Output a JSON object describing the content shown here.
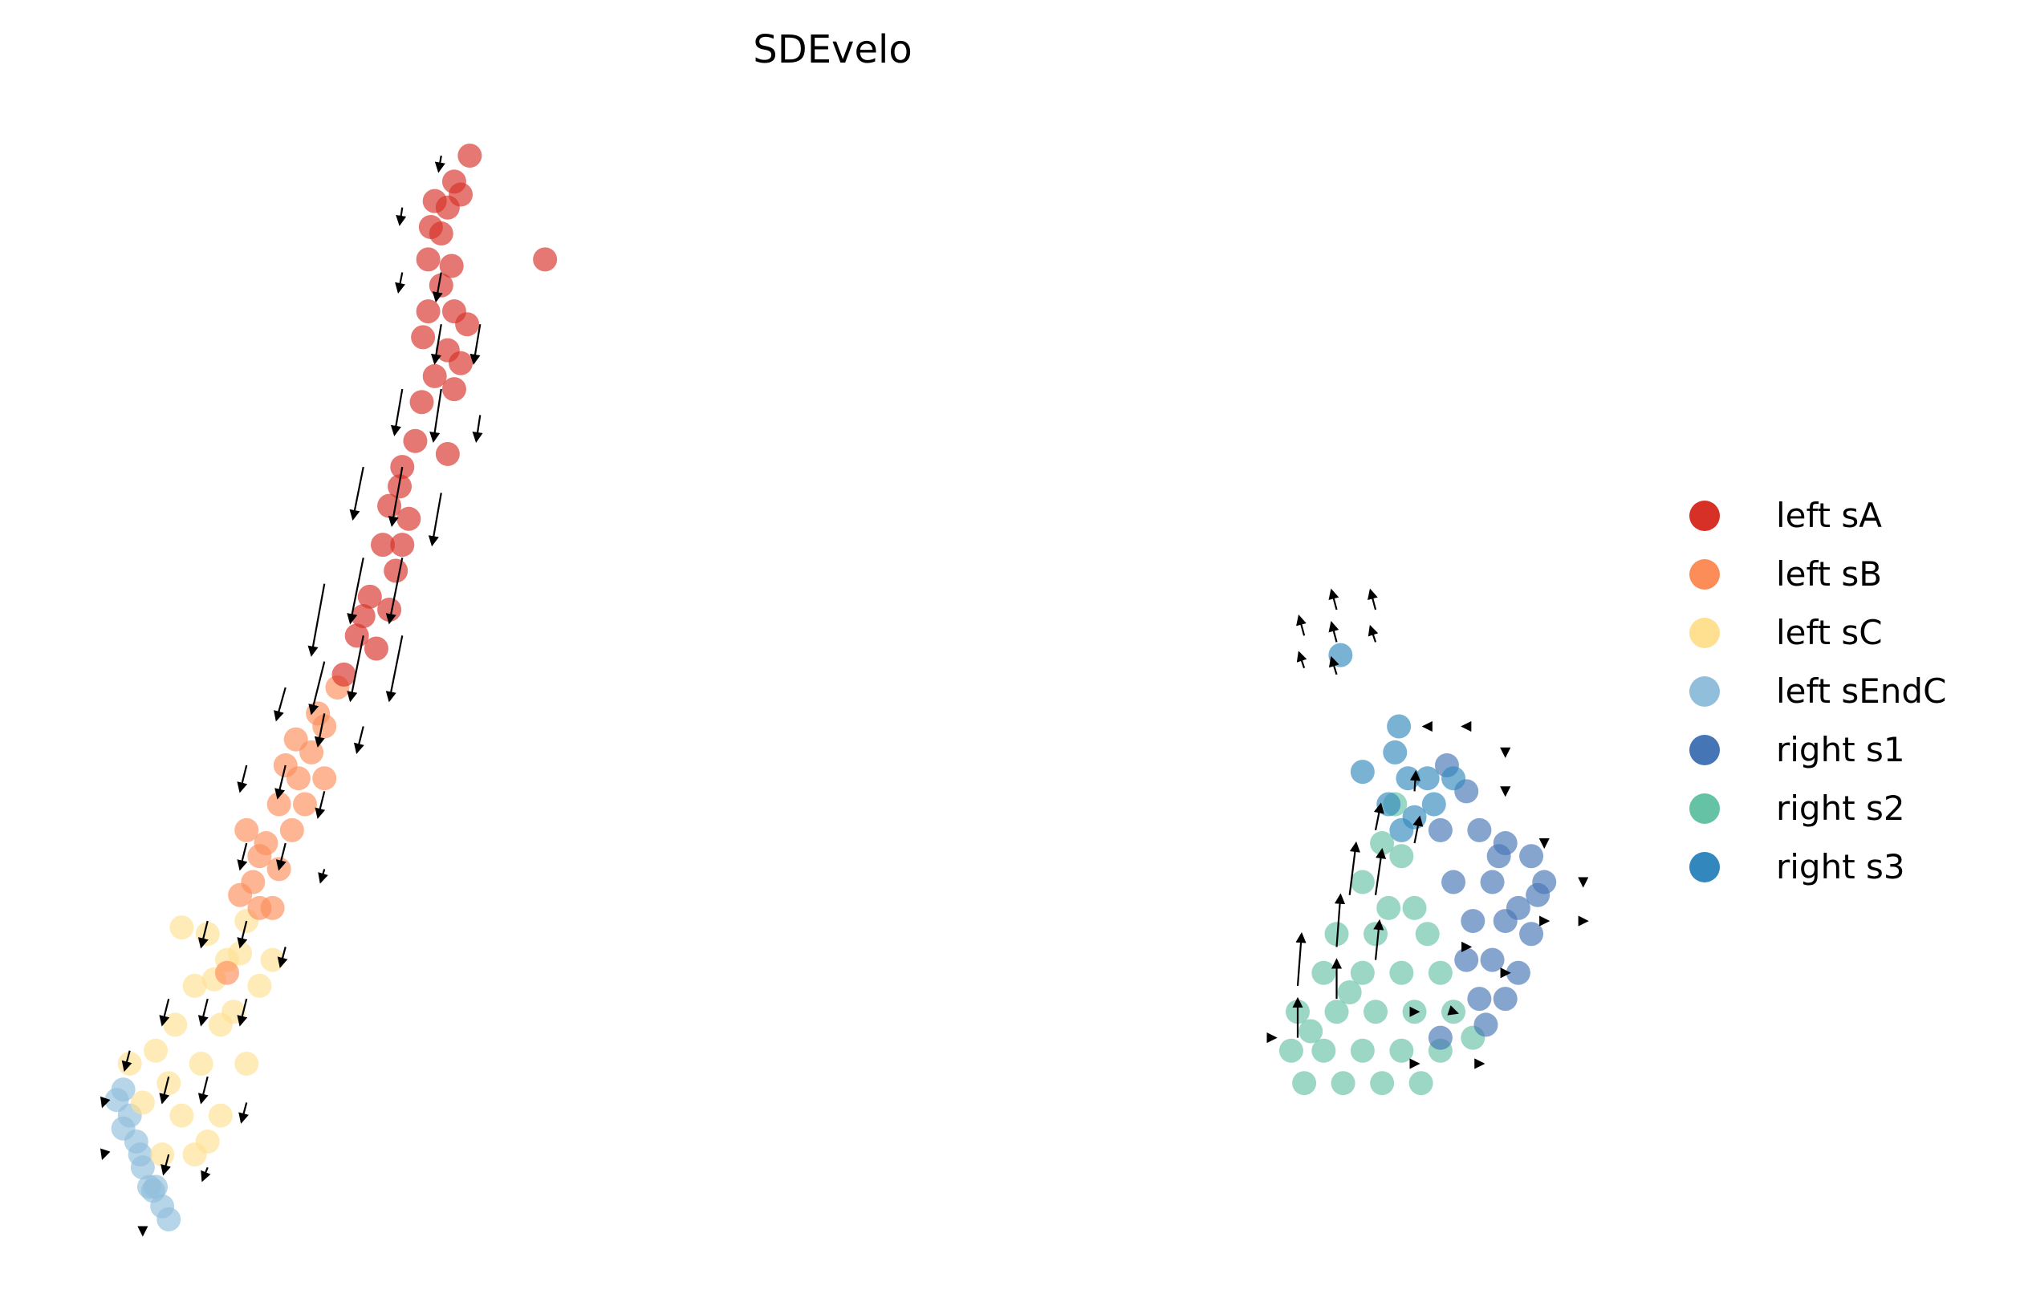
{
  "chart_data": {
    "type": "scatter",
    "title": "SDEvelo",
    "xlabel": "",
    "ylabel": "",
    "grid": false,
    "axes_visible": false,
    "xlim": [
      0,
      156
    ],
    "ylim": [
      0,
      101
    ],
    "legend_placement": "right",
    "series": [
      {
        "name": "left sA",
        "color": "#d73027",
        "points": [
          [
            35,
            87
          ],
          [
            34.5,
            85
          ],
          [
            34,
            83
          ],
          [
            33.2,
            83.5
          ],
          [
            35.5,
            86
          ],
          [
            36.2,
            89
          ],
          [
            34,
            79
          ],
          [
            33,
            77
          ],
          [
            35,
            77
          ],
          [
            36,
            76
          ],
          [
            34.5,
            74
          ],
          [
            33.5,
            72
          ],
          [
            35,
            71
          ],
          [
            32.5,
            70
          ],
          [
            32,
            67
          ],
          [
            31,
            65
          ],
          [
            30,
            62
          ],
          [
            31.5,
            61
          ],
          [
            29.5,
            59
          ],
          [
            30.5,
            57
          ],
          [
            28.5,
            55
          ],
          [
            30,
            54
          ],
          [
            27.5,
            52
          ],
          [
            29,
            51
          ],
          [
            26.5,
            49
          ],
          [
            42,
            81
          ],
          [
            34.5,
            66
          ],
          [
            33,
            81
          ],
          [
            35.5,
            73
          ],
          [
            31,
            59
          ],
          [
            33.5,
            85.5
          ],
          [
            34.8,
            80.5
          ],
          [
            32.6,
            75
          ],
          [
            30.8,
            63.5
          ],
          [
            28,
            53.5
          ]
        ]
      },
      {
        "name": "left sB",
        "color": "#fc8d59",
        "points": [
          [
            26,
            48
          ],
          [
            25,
            45
          ],
          [
            24,
            43
          ],
          [
            23,
            41
          ],
          [
            21.5,
            39
          ],
          [
            20.5,
            36
          ],
          [
            19.5,
            33
          ],
          [
            21,
            31
          ],
          [
            22.5,
            37
          ],
          [
            24.5,
            46
          ],
          [
            22,
            42
          ],
          [
            20,
            31
          ],
          [
            18.5,
            32
          ],
          [
            17.5,
            26
          ],
          [
            19,
            37
          ],
          [
            23.5,
            39
          ],
          [
            25,
            41
          ],
          [
            21.5,
            34
          ],
          [
            20,
            35
          ],
          [
            22.8,
            44
          ]
        ]
      },
      {
        "name": "left sC",
        "color": "#fee090",
        "points": [
          [
            14,
            29.5
          ],
          [
            16,
            29
          ],
          [
            19,
            30
          ],
          [
            17.5,
            27
          ],
          [
            15,
            25
          ],
          [
            20,
            25
          ],
          [
            13.5,
            22
          ],
          [
            17,
            22
          ],
          [
            12,
            20
          ],
          [
            15.5,
            19
          ],
          [
            19,
            19
          ],
          [
            11,
            16
          ],
          [
            14,
            15
          ],
          [
            17,
            15
          ],
          [
            12.5,
            12
          ],
          [
            15,
            12
          ],
          [
            10,
            19
          ],
          [
            21,
            27
          ],
          [
            18,
            23
          ],
          [
            16,
            13
          ],
          [
            13,
            17.5
          ],
          [
            16.5,
            25.5
          ],
          [
            18.5,
            27.5
          ]
        ]
      },
      {
        "name": "left sEndC",
        "color": "#91bfdb",
        "points": [
          [
            9.5,
            17
          ],
          [
            10,
            15
          ],
          [
            10.5,
            13
          ],
          [
            11,
            11
          ],
          [
            11.5,
            9.5
          ],
          [
            12.5,
            8
          ],
          [
            13,
            7
          ],
          [
            9.5,
            14
          ],
          [
            12,
            9.5
          ],
          [
            11.8,
            9.2
          ],
          [
            9,
            16.2
          ],
          [
            10.8,
            12
          ]
        ]
      },
      {
        "name": "right s1",
        "color": "#4575b4",
        "points": [
          [
            111.5,
            42
          ],
          [
            113,
            40
          ],
          [
            111,
            37
          ],
          [
            114,
            37
          ],
          [
            116,
            36
          ],
          [
            118,
            35
          ],
          [
            112,
            33
          ],
          [
            115,
            33
          ],
          [
            118.5,
            32
          ],
          [
            116,
            30
          ],
          [
            118,
            29
          ],
          [
            115,
            27
          ],
          [
            117,
            26
          ],
          [
            114,
            24
          ],
          [
            116,
            24
          ],
          [
            114.5,
            22
          ],
          [
            113,
            27
          ],
          [
            111,
            21
          ],
          [
            119,
            33
          ],
          [
            117,
            31
          ],
          [
            113.5,
            30
          ],
          [
            115.5,
            35
          ]
        ]
      },
      {
        "name": "right s2",
        "color": "#66c2a5",
        "points": [
          [
            107.5,
            39
          ],
          [
            106.5,
            36
          ],
          [
            108,
            35
          ],
          [
            105,
            33
          ],
          [
            107,
            31
          ],
          [
            109,
            31
          ],
          [
            103,
            29
          ],
          [
            106,
            29
          ],
          [
            110,
            29
          ],
          [
            102,
            26
          ],
          [
            105,
            26
          ],
          [
            108,
            26
          ],
          [
            111,
            26
          ],
          [
            100,
            23
          ],
          [
            103,
            23
          ],
          [
            106,
            23
          ],
          [
            109,
            23
          ],
          [
            112,
            23
          ],
          [
            99.5,
            20
          ],
          [
            102,
            20
          ],
          [
            105,
            20
          ],
          [
            108,
            20
          ],
          [
            111,
            20
          ],
          [
            100.5,
            17.5
          ],
          [
            103.5,
            17.5
          ],
          [
            106.5,
            17.5
          ],
          [
            109.5,
            17.5
          ],
          [
            113.5,
            21
          ],
          [
            101,
            21.5
          ],
          [
            104,
            24.5
          ]
        ]
      },
      {
        "name": "right s3",
        "color": "#3288bd",
        "points": [
          [
            107.8,
            45
          ],
          [
            107.5,
            43
          ],
          [
            108.5,
            41
          ],
          [
            110,
            41
          ],
          [
            107,
            39
          ],
          [
            109,
            38
          ],
          [
            110.5,
            39
          ],
          [
            112,
            41
          ],
          [
            105,
            41.5
          ],
          [
            103.3,
            50.5
          ],
          [
            108,
            37
          ]
        ]
      }
    ],
    "arrows": [
      [
        34,
        89,
        -0.2,
        -1.2
      ],
      [
        31,
        85,
        -0.2,
        -1.3
      ],
      [
        31,
        80,
        -0.3,
        -1.5
      ],
      [
        34,
        80,
        -0.4,
        -2.2
      ],
      [
        34,
        76,
        -0.5,
        -3
      ],
      [
        37,
        76,
        -0.5,
        -3
      ],
      [
        31,
        71,
        -0.6,
        -3.5
      ],
      [
        34,
        71,
        -0.6,
        -4
      ],
      [
        37,
        69,
        -0.3,
        -2
      ],
      [
        28,
        65,
        -0.8,
        -4
      ],
      [
        31,
        65,
        -0.8,
        -4.5
      ],
      [
        34,
        63,
        -0.7,
        -4
      ],
      [
        28,
        58,
        -1,
        -5
      ],
      [
        31,
        58,
        -1,
        -5
      ],
      [
        25,
        56,
        -1,
        -5.5
      ],
      [
        28,
        52,
        -1,
        -5
      ],
      [
        31,
        52,
        -1,
        -5
      ],
      [
        25,
        50,
        -1,
        -4
      ],
      [
        22,
        48,
        -0.7,
        -2.5
      ],
      [
        25,
        46,
        -0.5,
        -2.5
      ],
      [
        28,
        45,
        -0.5,
        -2
      ],
      [
        19,
        42,
        -0.5,
        -2
      ],
      [
        22,
        42,
        -0.6,
        -2.5
      ],
      [
        25,
        40,
        -0.5,
        -2
      ],
      [
        19,
        36,
        -0.5,
        -2
      ],
      [
        22,
        36,
        -0.5,
        -2
      ],
      [
        25,
        34,
        -0.3,
        -1
      ],
      [
        16,
        30,
        -0.5,
        -2
      ],
      [
        19,
        30,
        -0.5,
        -2
      ],
      [
        22,
        28,
        -0.4,
        -1.5
      ],
      [
        13,
        24,
        -0.5,
        -2
      ],
      [
        16,
        24,
        -0.5,
        -2
      ],
      [
        19,
        24,
        -0.5,
        -2
      ],
      [
        10,
        20,
        -0.4,
        -1.5
      ],
      [
        13,
        18,
        -0.5,
        -2
      ],
      [
        16,
        18,
        -0.5,
        -2
      ],
      [
        19,
        16,
        -0.4,
        -1.5
      ],
      [
        13,
        12,
        -0.4,
        -1.5
      ],
      [
        16,
        11,
        -0.4,
        -1
      ],
      [
        8,
        16,
        -0.1,
        -0.3
      ],
      [
        8,
        12,
        -0.1,
        -0.3
      ],
      [
        11,
        6,
        0,
        -0.2
      ],
      [
        100,
        21,
        0,
        3
      ],
      [
        100,
        25,
        0.3,
        4
      ],
      [
        103,
        24,
        0,
        3
      ],
      [
        103,
        28,
        0.3,
        4
      ],
      [
        104,
        32,
        0.5,
        4
      ],
      [
        106,
        27,
        0.3,
        3
      ],
      [
        106,
        32,
        0.5,
        3.5
      ],
      [
        106,
        37,
        0.4,
        2
      ],
      [
        109,
        36,
        0.4,
        2
      ],
      [
        109,
        40,
        0.1,
        1.5
      ],
      [
        100.5,
        52,
        -0.4,
        1.5
      ],
      [
        100.5,
        49.5,
        -0.4,
        1.2
      ],
      [
        103,
        54,
        -0.4,
        1.5
      ],
      [
        103,
        51.5,
        -0.4,
        1.5
      ],
      [
        103,
        49,
        -0.4,
        1.3
      ],
      [
        106,
        54,
        -0.4,
        1.5
      ],
      [
        106,
        51.5,
        -0.4,
        1.2
      ],
      [
        110,
        45,
        -0.3,
        0
      ],
      [
        113,
        45,
        -0.3,
        0
      ],
      [
        116,
        43,
        0,
        -0.3
      ],
      [
        116,
        40,
        0,
        -0.3
      ],
      [
        119,
        36,
        0,
        -0.3
      ],
      [
        122,
        33,
        0,
        -0.3
      ],
      [
        119,
        30,
        0.3,
        0
      ],
      [
        122,
        30,
        0.3,
        0
      ],
      [
        113,
        28,
        0.3,
        0
      ],
      [
        116,
        26,
        0.3,
        0
      ],
      [
        109,
        23,
        0.3,
        0
      ],
      [
        112,
        23,
        0.3,
        -0.1
      ],
      [
        98,
        21,
        0.3,
        0
      ],
      [
        109,
        19,
        0.3,
        0
      ],
      [
        114,
        19,
        0.3,
        0
      ]
    ]
  },
  "legend": [
    {
      "label": "left sA",
      "color": "#d73027"
    },
    {
      "label": "left sB",
      "color": "#fc8d59"
    },
    {
      "label": "left sC",
      "color": "#fee090"
    },
    {
      "label": "left sEndC",
      "color": "#91bfdb"
    },
    {
      "label": "right s1",
      "color": "#4575b4"
    },
    {
      "label": "right s2",
      "color": "#66c2a5"
    },
    {
      "label": "right s3",
      "color": "#3288bd"
    }
  ]
}
